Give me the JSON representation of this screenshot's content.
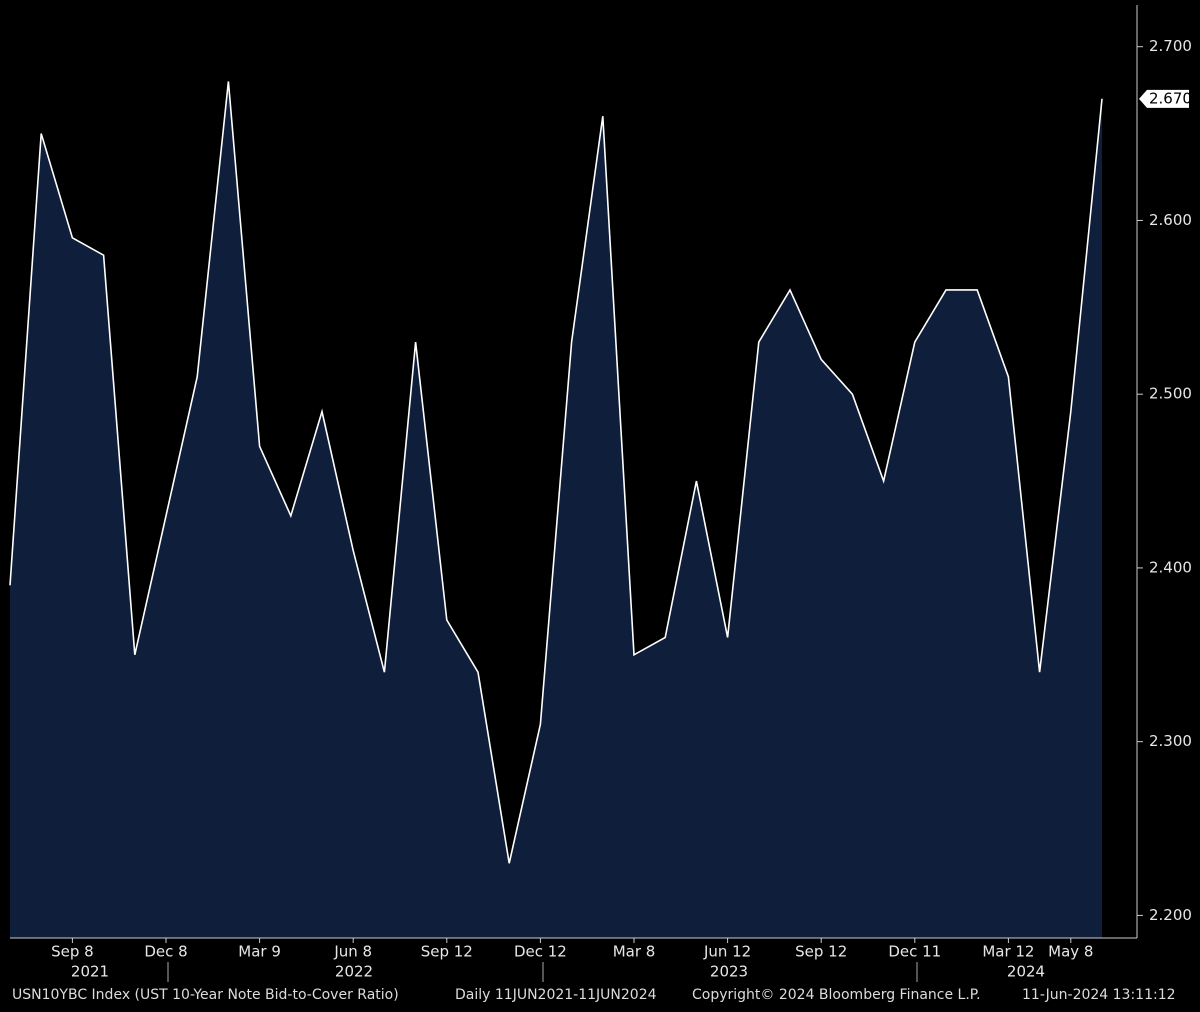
{
  "chart_data": {
    "type": "area",
    "categories": [
      null,
      null,
      "Sep 8",
      null,
      null,
      "Dec 8",
      null,
      null,
      "Mar 9",
      null,
      null,
      "Jun 8",
      null,
      null,
      "Sep 12",
      null,
      null,
      "Dec 12",
      null,
      null,
      "Mar 8",
      null,
      null,
      "Jun 12",
      null,
      null,
      "Sep 12",
      null,
      null,
      "Dec 11",
      null,
      null,
      "Mar 12",
      null,
      "May 8",
      null
    ],
    "values": [
      2.39,
      2.65,
      2.59,
      2.58,
      2.35,
      2.43,
      2.51,
      2.68,
      2.47,
      2.43,
      2.49,
      2.41,
      2.34,
      2.53,
      2.37,
      2.34,
      2.23,
      2.31,
      2.53,
      2.66,
      2.35,
      2.36,
      2.45,
      2.36,
      2.53,
      2.56,
      2.52,
      2.5,
      2.45,
      2.53,
      2.56,
      2.56,
      2.51,
      2.34,
      2.49,
      2.67
    ],
    "color": "#0f1f3b",
    "line_color": "#ffffff",
    "ylim": [
      2.187,
      2.724
    ],
    "yticks": [
      {
        "value": 2.2,
        "label": "2.200"
      },
      {
        "value": 2.3,
        "label": "2.300"
      },
      {
        "value": 2.4,
        "label": "2.400"
      },
      {
        "value": 2.5,
        "label": "2.500"
      },
      {
        "value": 2.6,
        "label": "2.600"
      },
      {
        "value": 2.7,
        "label": "2.700"
      }
    ],
    "last_value_label": "2.670",
    "x_year_labels": [
      "2021",
      "2022",
      "2023",
      "2024"
    ],
    "footer": [
      "USN10YBC Index (UST 10-Year Note Bid-to-Cover Ratio)",
      "Daily 11JUN2021-11JUN2024",
      "Copyright© 2024 Bloomberg Finance L.P.",
      "11-Jun-2024 13:11:12"
    ]
  }
}
